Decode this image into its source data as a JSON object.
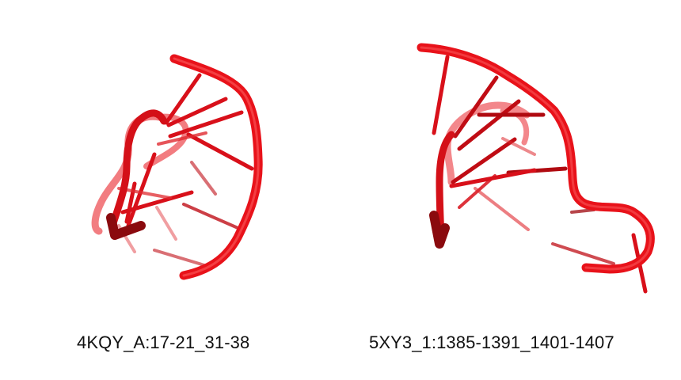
{
  "colors": {
    "background": "#ffffff",
    "backbone": "#e8121a",
    "backbone_dark": "#a0080e",
    "backbone_faded": "#e87a80",
    "caption_text": "#111111"
  },
  "structures": [
    {
      "id": "left",
      "caption": "4KQY_A:17-21_31-38",
      "icon": "rna-cartoon-hairpin"
    },
    {
      "id": "right",
      "caption": "5XY3_1:1385-1391_1401-1407",
      "icon": "rna-cartoon-hairpin-loop"
    }
  ]
}
